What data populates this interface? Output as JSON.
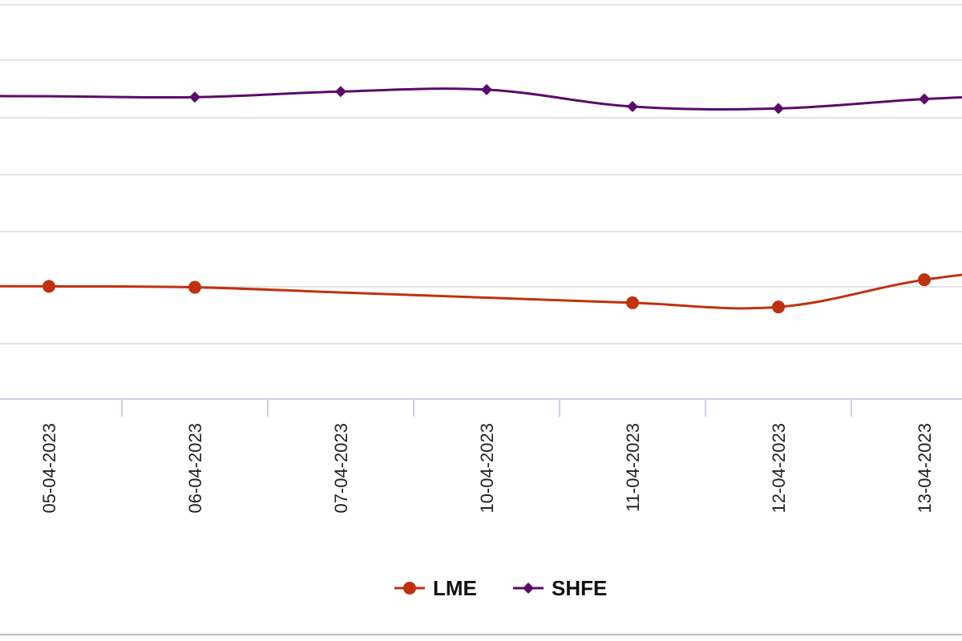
{
  "chart_data": {
    "type": "line",
    "title": "",
    "xlabel": "",
    "ylabel": "",
    "categories": [
      "05-04-2023",
      "06-04-2023",
      "07-04-2023",
      "10-04-2023",
      "11-04-2023",
      "12-04-2023",
      "13-04-2023"
    ],
    "series": [
      {
        "name": "LME",
        "color": "#c0310f",
        "marker": "circle",
        "show_marker": [
          true,
          true,
          false,
          false,
          true,
          true,
          true
        ],
        "values": [
          24.0,
          23.8,
          22.7,
          21.6,
          20.5,
          19.6,
          25.4
        ]
      },
      {
        "name": "SHFE",
        "color": "#5b0a6b",
        "marker": "diamond",
        "show_marker": [
          false,
          true,
          true,
          true,
          true,
          true,
          true
        ],
        "values": [
          64.5,
          64.3,
          65.5,
          65.9,
          62.3,
          61.9,
          63.9
        ]
      }
    ],
    "ylim": [
      0,
      85
    ],
    "grid": true,
    "legend_position": "bottom-center"
  }
}
